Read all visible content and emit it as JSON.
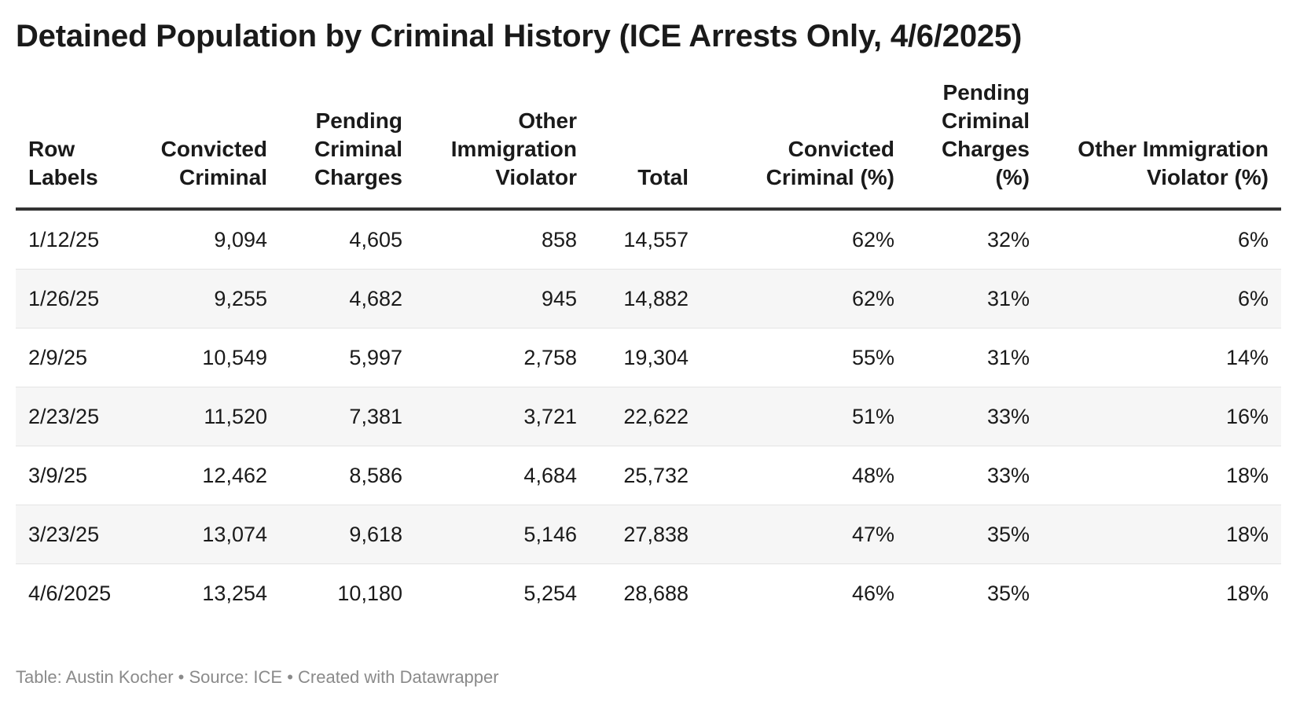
{
  "title": "Detained Population by Criminal History (ICE Arrests Only, 4/6/2025)",
  "footer": {
    "text": "Table: Austin Kocher • Source: ICE • Created with Datawrapper"
  },
  "colors": {
    "title": "#1a1a1a",
    "header_rule": "#333333",
    "stripe": "#f6f6f6",
    "footer": "#8a8a8a"
  },
  "chart_data": {
    "type": "table",
    "title": "Detained Population by Criminal History (ICE Arrests Only, 4/6/2025)",
    "columns": [
      "Row Labels",
      "Convicted Criminal",
      "Pending Criminal Charges",
      "Other Immigration Violator",
      "Total",
      "Convicted Criminal (%)",
      "Pending Criminal Charges (%)",
      "Other Immigration Violator (%)"
    ],
    "rows": [
      [
        "1/12/25",
        "9,094",
        "4,605",
        "858",
        "14,557",
        "62%",
        "32%",
        "6%"
      ],
      [
        "1/26/25",
        "9,255",
        "4,682",
        "945",
        "14,882",
        "62%",
        "31%",
        "6%"
      ],
      [
        "2/9/25",
        "10,549",
        "5,997",
        "2,758",
        "19,304",
        "55%",
        "31%",
        "14%"
      ],
      [
        "2/23/25",
        "11,520",
        "7,381",
        "3,721",
        "22,622",
        "51%",
        "33%",
        "16%"
      ],
      [
        "3/9/25",
        "12,462",
        "8,586",
        "4,684",
        "25,732",
        "48%",
        "33%",
        "18%"
      ],
      [
        "3/23/25",
        "13,074",
        "9,618",
        "5,146",
        "27,838",
        "47%",
        "35%",
        "18%"
      ],
      [
        "4/6/2025",
        "13,254",
        "10,180",
        "5,254",
        "28,688",
        "46%",
        "35%",
        "18%"
      ]
    ]
  }
}
